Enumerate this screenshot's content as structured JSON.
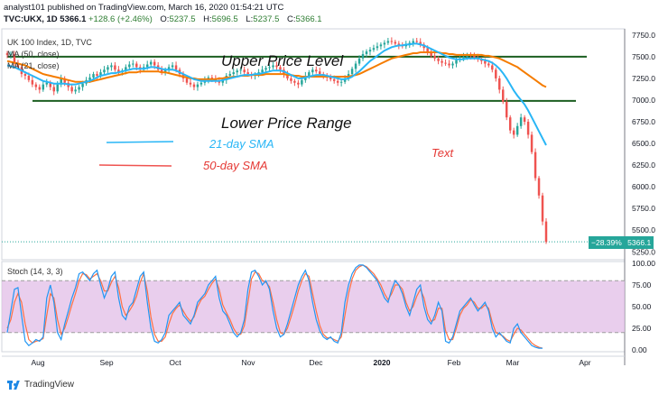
{
  "header": {
    "author_line": "analyst101 published on TradingView.com, March 16, 2020 01:54:21 UTC",
    "symbol": "TVC:UKX, 1D",
    "close_main": "5366.1",
    "change": "+128.6 (+2.46%)",
    "open_label": "O:",
    "open_value": "5237.5",
    "high_label": "H:",
    "high_value": "5696.5",
    "low_label": "L:",
    "low_value": "5237.5",
    "close_label": "C:",
    "close_value": "5366.1"
  },
  "legend": {
    "title": "UK 100 Index, 1D, TVC",
    "ma50": "MA (50, close)",
    "ma21": "MA (21, close)",
    "stoch": "Stoch (14, 3, 3)"
  },
  "annotations": {
    "upper": "Upper Price Level",
    "lower": "Lower Price Range",
    "sma21": "21-day SMA",
    "sma50": "50-day SMA",
    "text": "Text"
  },
  "price_tag": {
    "pct": "−28.39%",
    "price": "5366.1"
  },
  "footer": {
    "brand": "TradingView"
  },
  "colors": {
    "up": "#26a69a",
    "down": "#ef5350",
    "ma21": "#29b6f6",
    "ma50": "#f57c00",
    "level": "#1b5e20",
    "stoch_k": "#2196f3",
    "stoch_d": "#ff7043",
    "stoch_band": "#e1bee7"
  },
  "chart_data": {
    "type": "candlestick",
    "x_ticks": [
      "Aug",
      "Sep",
      "Oct",
      "Nov",
      "Dec",
      "2020",
      "Feb",
      "Mar",
      "Apr"
    ],
    "y_ticks": [
      7750,
      7500,
      7250,
      7000,
      6750,
      6500,
      6250,
      6000,
      5750,
      5500,
      5250
    ],
    "ylim": [
      5180,
      7800
    ],
    "levels": [
      7500,
      6990
    ],
    "closes": [
      7520,
      7530,
      7420,
      7380,
      7300,
      7280,
      7230,
      7180,
      7150,
      7120,
      7180,
      7200,
      7150,
      7100,
      7180,
      7250,
      7200,
      7150,
      7100,
      7120,
      7150,
      7190,
      7230,
      7260,
      7300,
      7280,
      7320,
      7350,
      7380,
      7400,
      7350,
      7320,
      7340,
      7380,
      7410,
      7420,
      7380,
      7350,
      7380,
      7410,
      7440,
      7400,
      7350,
      7320,
      7350,
      7380,
      7400,
      7350,
      7300,
      7250,
      7200,
      7180,
      7150,
      7180,
      7200,
      7230,
      7260,
      7250,
      7220,
      7200,
      7230,
      7280,
      7300,
      7320,
      7340,
      7350,
      7320,
      7300,
      7280,
      7290,
      7320,
      7350,
      7370,
      7380,
      7400,
      7380,
      7350,
      7300,
      7250,
      7220,
      7200,
      7180,
      7230,
      7280,
      7320,
      7350,
      7330,
      7300,
      7280,
      7260,
      7240,
      7220,
      7200,
      7210,
      7250,
      7300,
      7360,
      7420,
      7480,
      7530,
      7560,
      7580,
      7600,
      7620,
      7640,
      7660,
      7680,
      7670,
      7650,
      7630,
      7620,
      7640,
      7660,
      7680,
      7670,
      7640,
      7600,
      7560,
      7510,
      7480,
      7450,
      7430,
      7420,
      7400,
      7420,
      7460,
      7480,
      7500,
      7520,
      7510,
      7490,
      7470,
      7450,
      7420,
      7400,
      7350,
      7250,
      7120,
      6980,
      6800,
      6650,
      6600,
      6700,
      6800,
      6750,
      6600,
      6400,
      6100,
      5900,
      5600,
      5366
    ],
    "ma21": [
      7400,
      7390,
      7380,
      7360,
      7340,
      7320,
      7300,
      7280,
      7260,
      7240,
      7220,
      7210,
      7200,
      7190,
      7190,
      7190,
      7190,
      7180,
      7180,
      7180,
      7190,
      7200,
      7210,
      7220,
      7240,
      7260,
      7280,
      7290,
      7300,
      7310,
      7310,
      7320,
      7330,
      7340,
      7350,
      7360,
      7360,
      7360,
      7360,
      7370,
      7380,
      7380,
      7370,
      7360,
      7350,
      7350,
      7350,
      7340,
      7320,
      7300,
      7280,
      7260,
      7240,
      7230,
      7220,
      7220,
      7220,
      7220,
      7220,
      7220,
      7230,
      7240,
      7250,
      7260,
      7270,
      7280,
      7290,
      7290,
      7290,
      7300,
      7300,
      7310,
      7320,
      7330,
      7340,
      7340,
      7340,
      7330,
      7310,
      7290,
      7270,
      7250,
      7250,
      7260,
      7270,
      7280,
      7290,
      7290,
      7290,
      7280,
      7270,
      7260,
      7250,
      7240,
      7240,
      7250,
      7270,
      7300,
      7330,
      7370,
      7410,
      7450,
      7480,
      7510,
      7540,
      7570,
      7590,
      7610,
      7620,
      7630,
      7630,
      7640,
      7640,
      7650,
      7650,
      7640,
      7630,
      7610,
      7590,
      7570,
      7550,
      7530,
      7510,
      7490,
      7480,
      7470,
      7470,
      7470,
      7480,
      7480,
      7480,
      7480,
      7470,
      7460,
      7450,
      7430,
      7400,
      7360,
      7310,
      7250,
      7180,
      7110,
      7050,
      7000,
      6950,
      6880,
      6800,
      6720,
      6640,
      6560,
      6480
    ],
    "ma50": [
      7450,
      7440,
      7430,
      7420,
      7410,
      7400,
      7380,
      7360,
      7340,
      7320,
      7300,
      7290,
      7280,
      7270,
      7260,
      7250,
      7240,
      7230,
      7220,
      7210,
      7210,
      7210,
      7210,
      7210,
      7220,
      7230,
      7240,
      7250,
      7260,
      7270,
      7280,
      7290,
      7300,
      7310,
      7320,
      7320,
      7320,
      7330,
      7330,
      7330,
      7330,
      7330,
      7330,
      7320,
      7320,
      7310,
      7300,
      7290,
      7280,
      7270,
      7260,
      7250,
      7250,
      7240,
      7240,
      7240,
      7240,
      7240,
      7240,
      7250,
      7250,
      7260,
      7260,
      7270,
      7270,
      7280,
      7280,
      7280,
      7290,
      7290,
      7290,
      7290,
      7300,
      7300,
      7300,
      7300,
      7300,
      7300,
      7290,
      7290,
      7280,
      7280,
      7270,
      7270,
      7270,
      7270,
      7270,
      7270,
      7270,
      7270,
      7270,
      7270,
      7270,
      7270,
      7270,
      7270,
      7280,
      7290,
      7300,
      7320,
      7340,
      7360,
      7380,
      7400,
      7420,
      7440,
      7460,
      7480,
      7490,
      7500,
      7510,
      7520,
      7530,
      7540,
      7540,
      7550,
      7550,
      7550,
      7550,
      7550,
      7550,
      7540,
      7540,
      7530,
      7530,
      7520,
      7520,
      7520,
      7520,
      7520,
      7520,
      7520,
      7520,
      7510,
      7510,
      7500,
      7490,
      7480,
      7460,
      7440,
      7420,
      7400,
      7380,
      7350,
      7320,
      7290,
      7260,
      7230,
      7200,
      7170,
      7150
    ],
    "stoch": {
      "ylim": [
        0,
        100
      ],
      "y_ticks": [
        100,
        75,
        50,
        25,
        0
      ],
      "bands": [
        80,
        20
      ],
      "k": [
        20,
        45,
        70,
        72,
        40,
        10,
        5,
        8,
        12,
        10,
        15,
        60,
        75,
        55,
        20,
        12,
        30,
        45,
        60,
        72,
        88,
        90,
        85,
        80,
        88,
        92,
        75,
        60,
        70,
        85,
        90,
        60,
        40,
        35,
        50,
        55,
        70,
        85,
        90,
        55,
        25,
        10,
        8,
        12,
        20,
        40,
        45,
        50,
        55,
        40,
        35,
        30,
        40,
        55,
        60,
        65,
        75,
        80,
        85,
        60,
        45,
        40,
        30,
        20,
        15,
        20,
        35,
        70,
        90,
        92,
        85,
        75,
        80,
        70,
        45,
        25,
        15,
        18,
        30,
        45,
        60,
        75,
        85,
        92,
        80,
        55,
        35,
        22,
        15,
        12,
        15,
        10,
        8,
        20,
        55,
        75,
        88,
        95,
        98,
        98,
        95,
        90,
        85,
        80,
        70,
        60,
        55,
        70,
        80,
        75,
        65,
        50,
        40,
        55,
        70,
        75,
        50,
        35,
        30,
        40,
        55,
        45,
        10,
        8,
        15,
        30,
        45,
        50,
        55,
        60,
        52,
        45,
        50,
        55,
        45,
        25,
        15,
        20,
        15,
        10,
        8,
        25,
        30,
        20,
        15,
        10,
        5,
        3,
        2,
        2
      ],
      "d": [
        25,
        35,
        55,
        65,
        55,
        30,
        12,
        8,
        10,
        11,
        13,
        40,
        65,
        60,
        35,
        18,
        25,
        38,
        52,
        65,
        80,
        88,
        87,
        82,
        85,
        88,
        80,
        68,
        68,
        78,
        85,
        72,
        50,
        40,
        45,
        52,
        62,
        78,
        88,
        68,
        38,
        18,
        10,
        10,
        15,
        30,
        42,
        48,
        52,
        45,
        38,
        33,
        38,
        50,
        58,
        62,
        70,
        77,
        82,
        70,
        52,
        43,
        35,
        25,
        18,
        18,
        28,
        55,
        82,
        90,
        88,
        80,
        78,
        73,
        55,
        35,
        20,
        18,
        25,
        38,
        52,
        68,
        80,
        88,
        85,
        65,
        45,
        28,
        18,
        14,
        14,
        12,
        10,
        15,
        40,
        65,
        82,
        92,
        96,
        98,
        96,
        92,
        88,
        82,
        75,
        65,
        58,
        65,
        75,
        75,
        70,
        55,
        45,
        50,
        62,
        70,
        60,
        42,
        33,
        35,
        48,
        48,
        22,
        12,
        12,
        25,
        40,
        48,
        52,
        58,
        55,
        48,
        48,
        52,
        48,
        32,
        20,
        18,
        16,
        12,
        10,
        18,
        25,
        23,
        18,
        13,
        8,
        5,
        3,
        2
      ]
    }
  }
}
